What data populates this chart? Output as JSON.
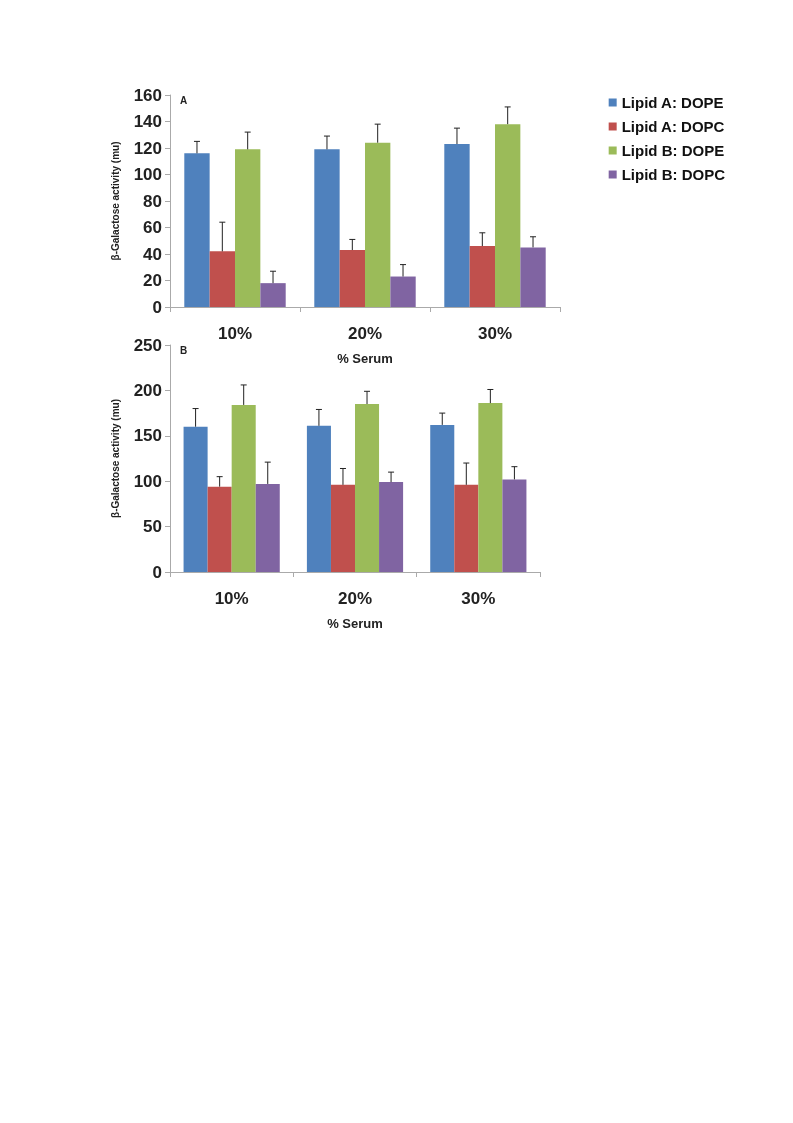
{
  "chart_data": [
    {
      "type": "bar",
      "categories": [
        "10%",
        "20%",
        "30%"
      ],
      "xlabel": "% Serum",
      "ylabel": "β-Galactose activity (mu)",
      "ylim": [
        0,
        160
      ],
      "yticks": [
        0,
        20,
        40,
        60,
        80,
        100,
        120,
        140,
        160
      ],
      "grid": false,
      "legend": "top right",
      "annotations": [
        "A"
      ],
      "series": [
        {
          "name": "Lipid A: DOPE",
          "color": "#4f81bd",
          "values": [
            116,
            119,
            123
          ],
          "errors": [
            [
              116,
              125
            ],
            [
              119,
              129
            ],
            [
              123,
              135
            ]
          ]
        },
        {
          "name": "Lipid A: DOPC",
          "color": "#c0504d",
          "values": [
            42,
            43,
            46
          ],
          "errors": [
            [
              42,
              64
            ],
            [
              43,
              51
            ],
            [
              46,
              56
            ]
          ]
        },
        {
          "name": "Lipid B: DOPE",
          "color": "#9bbb59",
          "values": [
            119,
            124,
            138
          ],
          "errors": [
            [
              119,
              132
            ],
            [
              124,
              138
            ],
            [
              138,
              151
            ]
          ]
        },
        {
          "name": "Lipid B: DOPC",
          "color": "#8064a2",
          "values": [
            18,
            23,
            45
          ],
          "errors": [
            [
              18,
              27
            ],
            [
              23,
              32
            ],
            [
              45,
              53
            ]
          ]
        }
      ]
    },
    {
      "type": "bar",
      "categories": [
        "10%",
        "20%",
        "30%"
      ],
      "xlabel": "% Serum",
      "ylabel": "β-Galactose activity (mu)",
      "ylim": [
        0,
        250
      ],
      "yticks": [
        0,
        50,
        100,
        150,
        200,
        250
      ],
      "grid": false,
      "annotations": [
        "B"
      ],
      "series": [
        {
          "color": "#4f81bd",
          "values": [
            160,
            161,
            162
          ],
          "errors": [
            [
              160,
              180
            ],
            [
              161,
              179
            ],
            [
              162,
              175
            ]
          ]
        },
        {
          "color": "#c0504d",
          "values": [
            94,
            96,
            96
          ],
          "errors": [
            [
              94,
              105
            ],
            [
              96,
              114
            ],
            [
              96,
              120
            ]
          ]
        },
        {
          "color": "#9bbb59",
          "values": [
            184,
            185,
            186
          ],
          "errors": [
            [
              184,
              206
            ],
            [
              185,
              199
            ],
            [
              186,
              201
            ]
          ]
        },
        {
          "color": "#8064a2",
          "values": [
            97,
            99,
            102
          ],
          "errors": [
            [
              97,
              121
            ],
            [
              99,
              110
            ],
            [
              102,
              116
            ]
          ]
        }
      ]
    }
  ]
}
